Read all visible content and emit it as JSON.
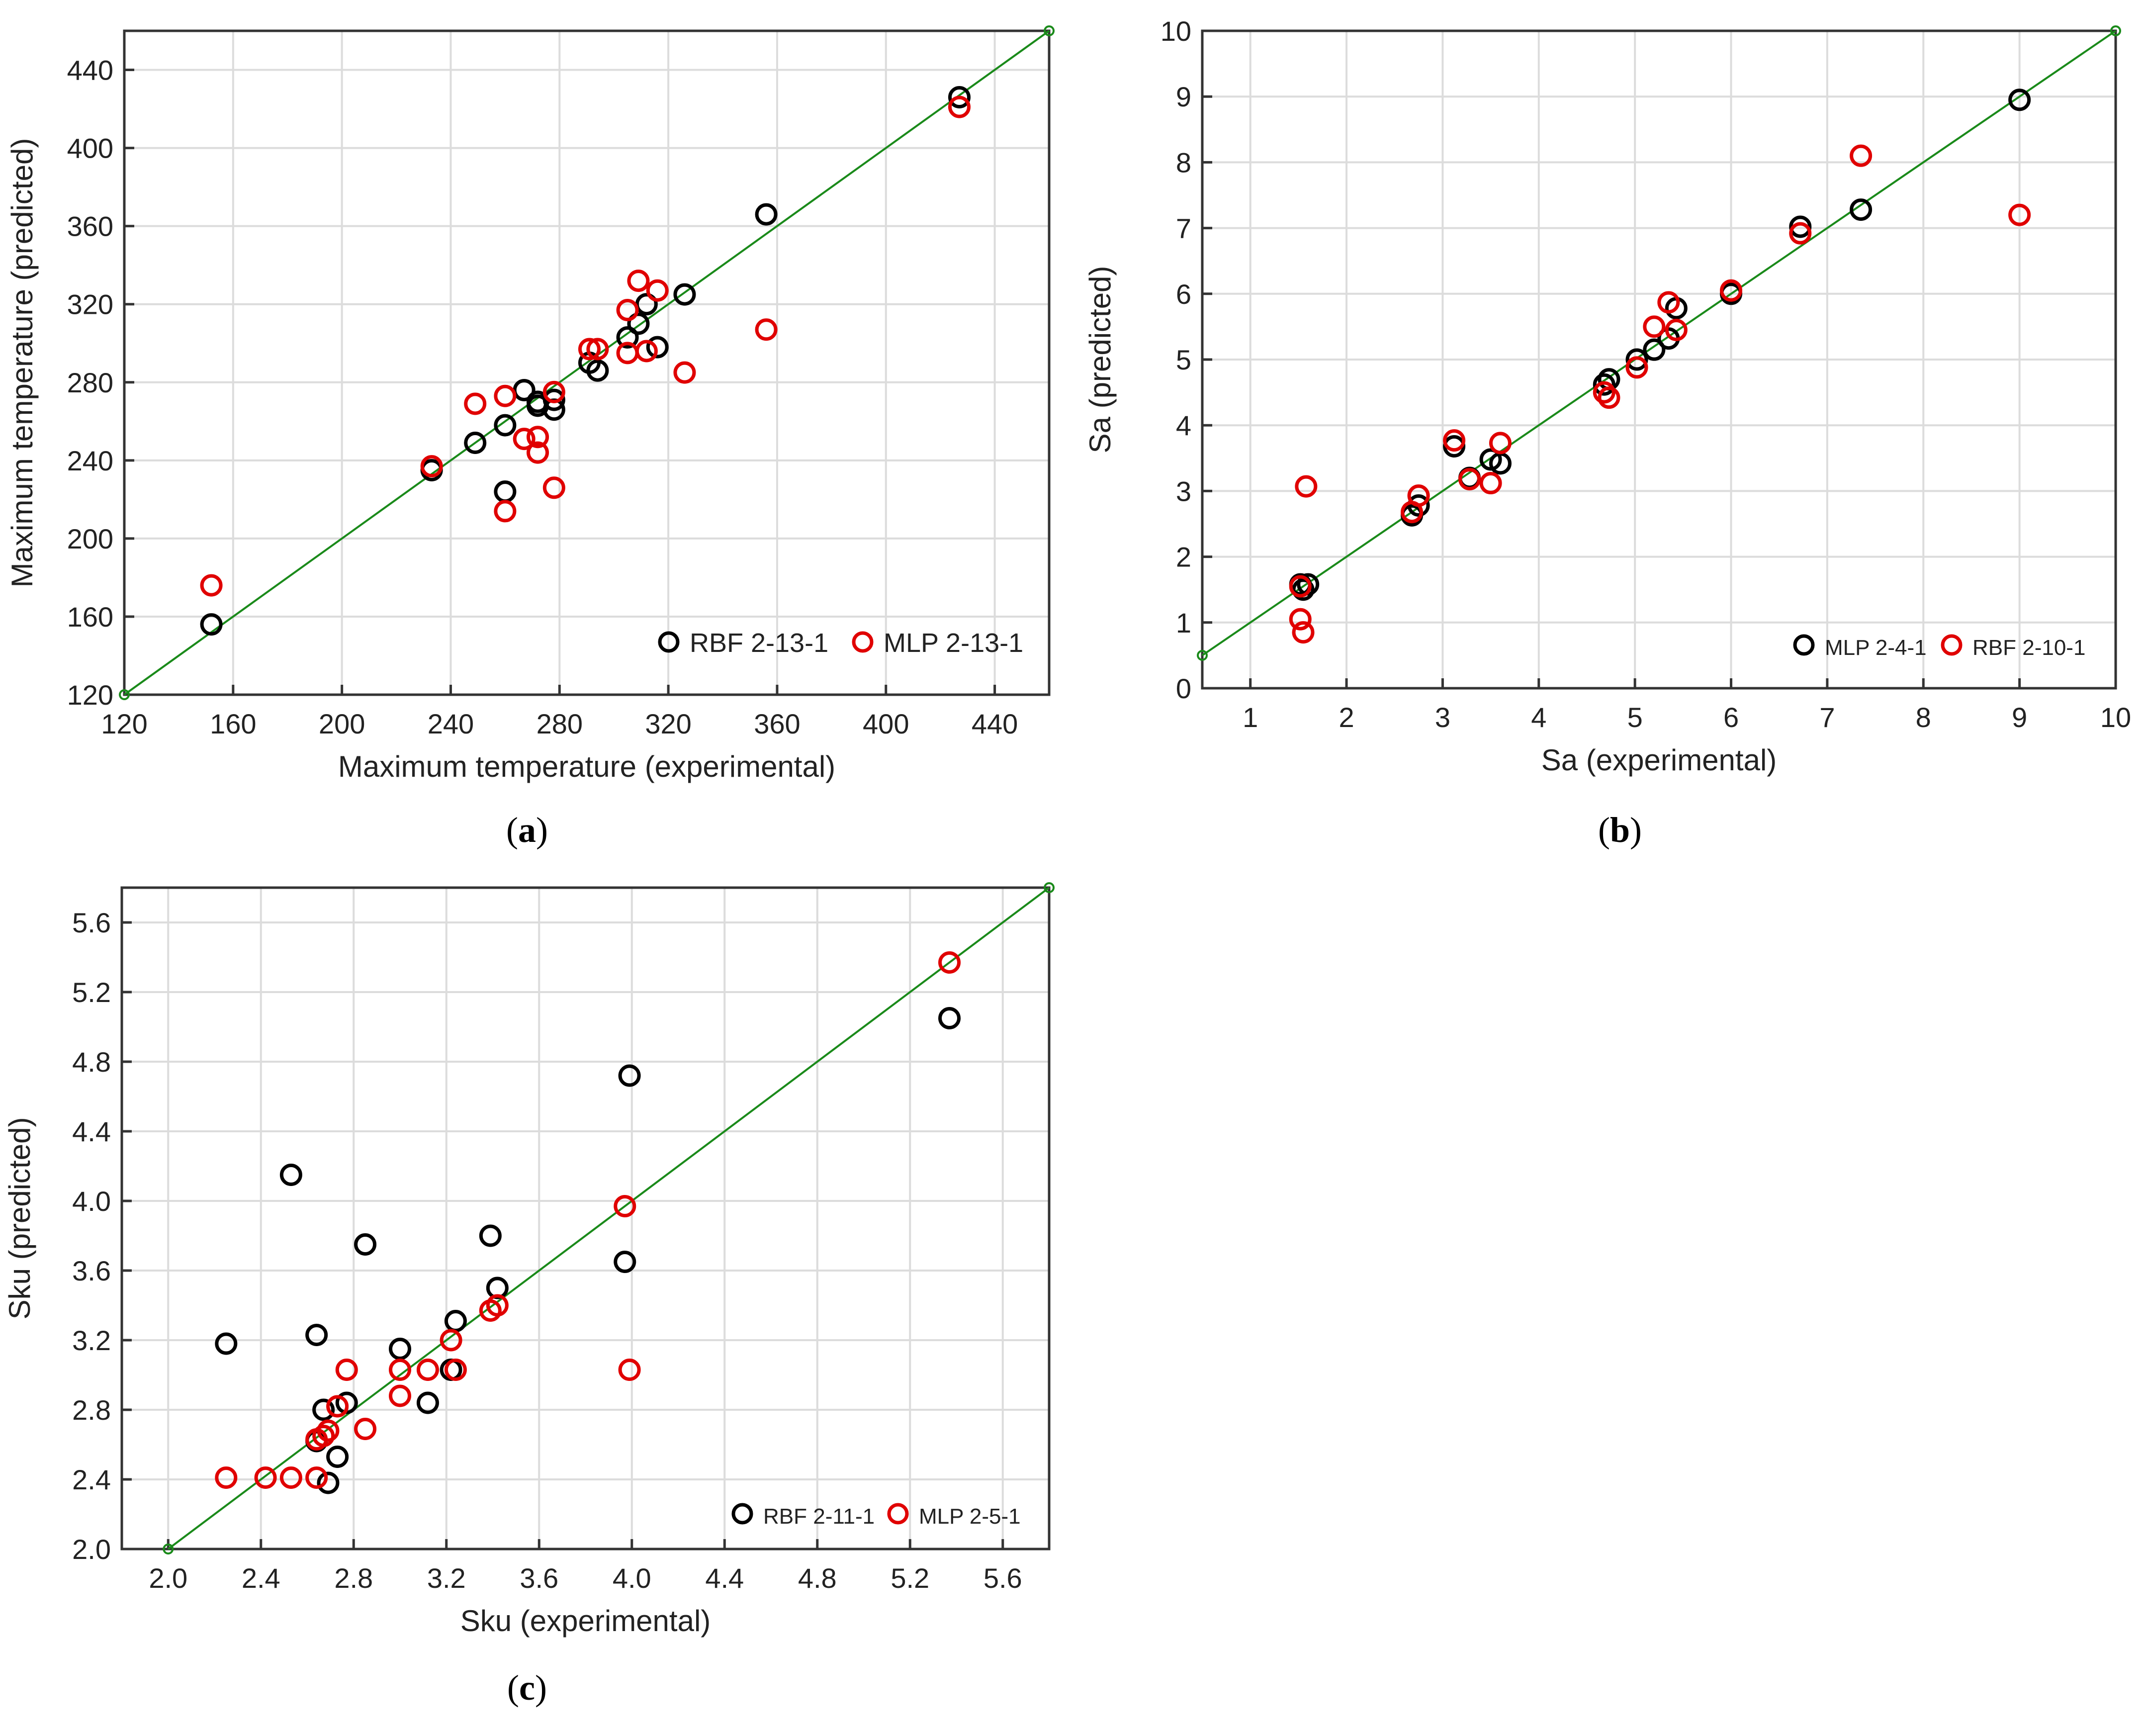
{
  "chart_data": [
    {
      "type": "scatter",
      "panel_label": "a",
      "title": "",
      "xlabel": "Maximum temperature (experimental)",
      "ylabel": "Maximum temperature  (predicted)",
      "xlim": [
        120,
        460
      ],
      "ylim": [
        120,
        460
      ],
      "xticks": [
        120,
        160,
        200,
        240,
        280,
        320,
        360,
        400,
        440
      ],
      "yticks": [
        120,
        160,
        200,
        240,
        280,
        320,
        360,
        400,
        440
      ],
      "grid": true,
      "legend_position": "bottom-right",
      "reference_line": {
        "from": [
          120,
          120
        ],
        "to": [
          460,
          460
        ],
        "color": "#1a8a1a"
      },
      "series": [
        {
          "name": "RBF 2-13-1",
          "color": "#000000",
          "points": [
            [
              152,
              156
            ],
            [
              233,
              235
            ],
            [
              249,
              249
            ],
            [
              260,
              258
            ],
            [
              260,
              224
            ],
            [
              267,
              276
            ],
            [
              272,
              270
            ],
            [
              272,
              268
            ],
            [
              278,
              266
            ],
            [
              278,
              271
            ],
            [
              291,
              290
            ],
            [
              294,
              286
            ],
            [
              305,
              303
            ],
            [
              309,
              310
            ],
            [
              312,
              320
            ],
            [
              316,
              298
            ],
            [
              326,
              325
            ],
            [
              356,
              366
            ],
            [
              427,
              426
            ]
          ]
        },
        {
          "name": "MLP 2-13-1",
          "color": "#e00000",
          "points": [
            [
              152,
              176
            ],
            [
              233,
              237
            ],
            [
              249,
              269
            ],
            [
              260,
              273
            ],
            [
              260,
              214
            ],
            [
              267,
              251
            ],
            [
              272,
              252
            ],
            [
              272,
              244
            ],
            [
              278,
              275
            ],
            [
              278,
              226
            ],
            [
              291,
              297
            ],
            [
              294,
              297
            ],
            [
              305,
              317
            ],
            [
              305,
              295
            ],
            [
              309,
              332
            ],
            [
              312,
              296
            ],
            [
              316,
              327
            ],
            [
              326,
              285
            ],
            [
              356,
              307
            ],
            [
              427,
              421
            ]
          ]
        }
      ]
    },
    {
      "type": "scatter",
      "panel_label": "b",
      "title": "",
      "xlabel": "Sa (experimental)",
      "ylabel": "Sa (predicted)",
      "xlim": [
        0.5,
        10
      ],
      "ylim": [
        0,
        10
      ],
      "xticks": [
        1,
        2,
        3,
        4,
        5,
        6,
        7,
        8,
        9,
        10
      ],
      "yticks": [
        0,
        1,
        2,
        3,
        4,
        5,
        6,
        7,
        8,
        9,
        10
      ],
      "grid": true,
      "legend_position": "bottom-right",
      "reference_line": {
        "from": [
          0.5,
          0.5
        ],
        "to": [
          10,
          10
        ],
        "color": "#1a8a1a"
      },
      "series": [
        {
          "name": "MLP 2-4-1",
          "color": "#000000",
          "points": [
            [
              1.52,
              1.58
            ],
            [
              1.55,
              1.5
            ],
            [
              1.6,
              1.58
            ],
            [
              2.68,
              2.63
            ],
            [
              2.75,
              2.78
            ],
            [
              3.12,
              3.68
            ],
            [
              3.28,
              3.2
            ],
            [
              3.5,
              3.48
            ],
            [
              3.6,
              3.42
            ],
            [
              4.68,
              4.62
            ],
            [
              4.73,
              4.7
            ],
            [
              5.02,
              5.0
            ],
            [
              5.2,
              5.15
            ],
            [
              5.35,
              5.32
            ],
            [
              5.43,
              5.78
            ],
            [
              6.0,
              6.0
            ],
            [
              6.72,
              7.02
            ],
            [
              7.35,
              7.28
            ],
            [
              9.0,
              8.95
            ]
          ]
        },
        {
          "name": "RBF 2-10-1",
          "color": "#e00000",
          "points": [
            [
              1.52,
              1.05
            ],
            [
              1.55,
              0.85
            ],
            [
              1.58,
              3.07
            ],
            [
              1.52,
              1.55
            ],
            [
              2.68,
              2.68
            ],
            [
              2.75,
              2.93
            ],
            [
              3.12,
              3.77
            ],
            [
              3.28,
              3.18
            ],
            [
              3.5,
              3.12
            ],
            [
              3.6,
              3.73
            ],
            [
              4.68,
              4.5
            ],
            [
              4.73,
              4.42
            ],
            [
              5.02,
              4.88
            ],
            [
              5.2,
              5.5
            ],
            [
              5.35,
              5.87
            ],
            [
              5.43,
              5.45
            ],
            [
              6.0,
              6.05
            ],
            [
              6.72,
              6.92
            ],
            [
              7.35,
              8.1
            ],
            [
              9.0,
              7.2
            ]
          ]
        }
      ]
    },
    {
      "type": "scatter",
      "panel_label": "c",
      "title": "",
      "xlabel": "Sku (experimental)",
      "ylabel": "Sku (predicted)",
      "xlim": [
        1.8,
        5.8
      ],
      "ylim": [
        2.0,
        5.8
      ],
      "xticks": [
        2.0,
        2.4,
        2.8,
        3.2,
        3.6,
        4.0,
        4.4,
        4.8,
        5.2,
        5.6
      ],
      "yticks": [
        2.0,
        2.4,
        2.8,
        3.2,
        3.6,
        4.0,
        4.4,
        4.8,
        5.2,
        5.6
      ],
      "grid": true,
      "legend_position": "bottom-right",
      "reference_line": {
        "from": [
          2.0,
          2.0
        ],
        "to": [
          5.8,
          5.8
        ],
        "color": "#1a8a1a"
      },
      "series": [
        {
          "name": "RBF 2-11-1",
          "color": "#000000",
          "points": [
            [
              2.25,
              3.18
            ],
            [
              2.53,
              4.15
            ],
            [
              2.64,
              3.23
            ],
            [
              2.64,
              2.62
            ],
            [
              2.67,
              2.8
            ],
            [
              2.69,
              2.38
            ],
            [
              2.73,
              2.53
            ],
            [
              2.77,
              2.84
            ],
            [
              2.85,
              3.75
            ],
            [
              3.0,
              3.15
            ],
            [
              3.12,
              2.84
            ],
            [
              3.22,
              3.03
            ],
            [
              3.24,
              3.31
            ],
            [
              3.39,
              3.8
            ],
            [
              3.42,
              3.5
            ],
            [
              3.97,
              3.65
            ],
            [
              3.99,
              4.72
            ],
            [
              5.37,
              5.05
            ]
          ]
        },
        {
          "name": "MLP 2-5-1",
          "color": "#e00000",
          "points": [
            [
              2.25,
              2.41
            ],
            [
              2.42,
              2.41
            ],
            [
              2.53,
              2.41
            ],
            [
              2.64,
              2.41
            ],
            [
              2.64,
              2.63
            ],
            [
              2.67,
              2.65
            ],
            [
              2.69,
              2.68
            ],
            [
              2.73,
              2.82
            ],
            [
              2.77,
              3.03
            ],
            [
              2.85,
              2.69
            ],
            [
              3.0,
              2.88
            ],
            [
              3.0,
              3.03
            ],
            [
              3.12,
              3.03
            ],
            [
              3.22,
              3.2
            ],
            [
              3.24,
              3.03
            ],
            [
              3.39,
              3.37
            ],
            [
              3.42,
              3.4
            ],
            [
              3.97,
              3.97
            ],
            [
              3.99,
              3.03
            ],
            [
              5.37,
              5.37
            ]
          ]
        }
      ]
    }
  ]
}
